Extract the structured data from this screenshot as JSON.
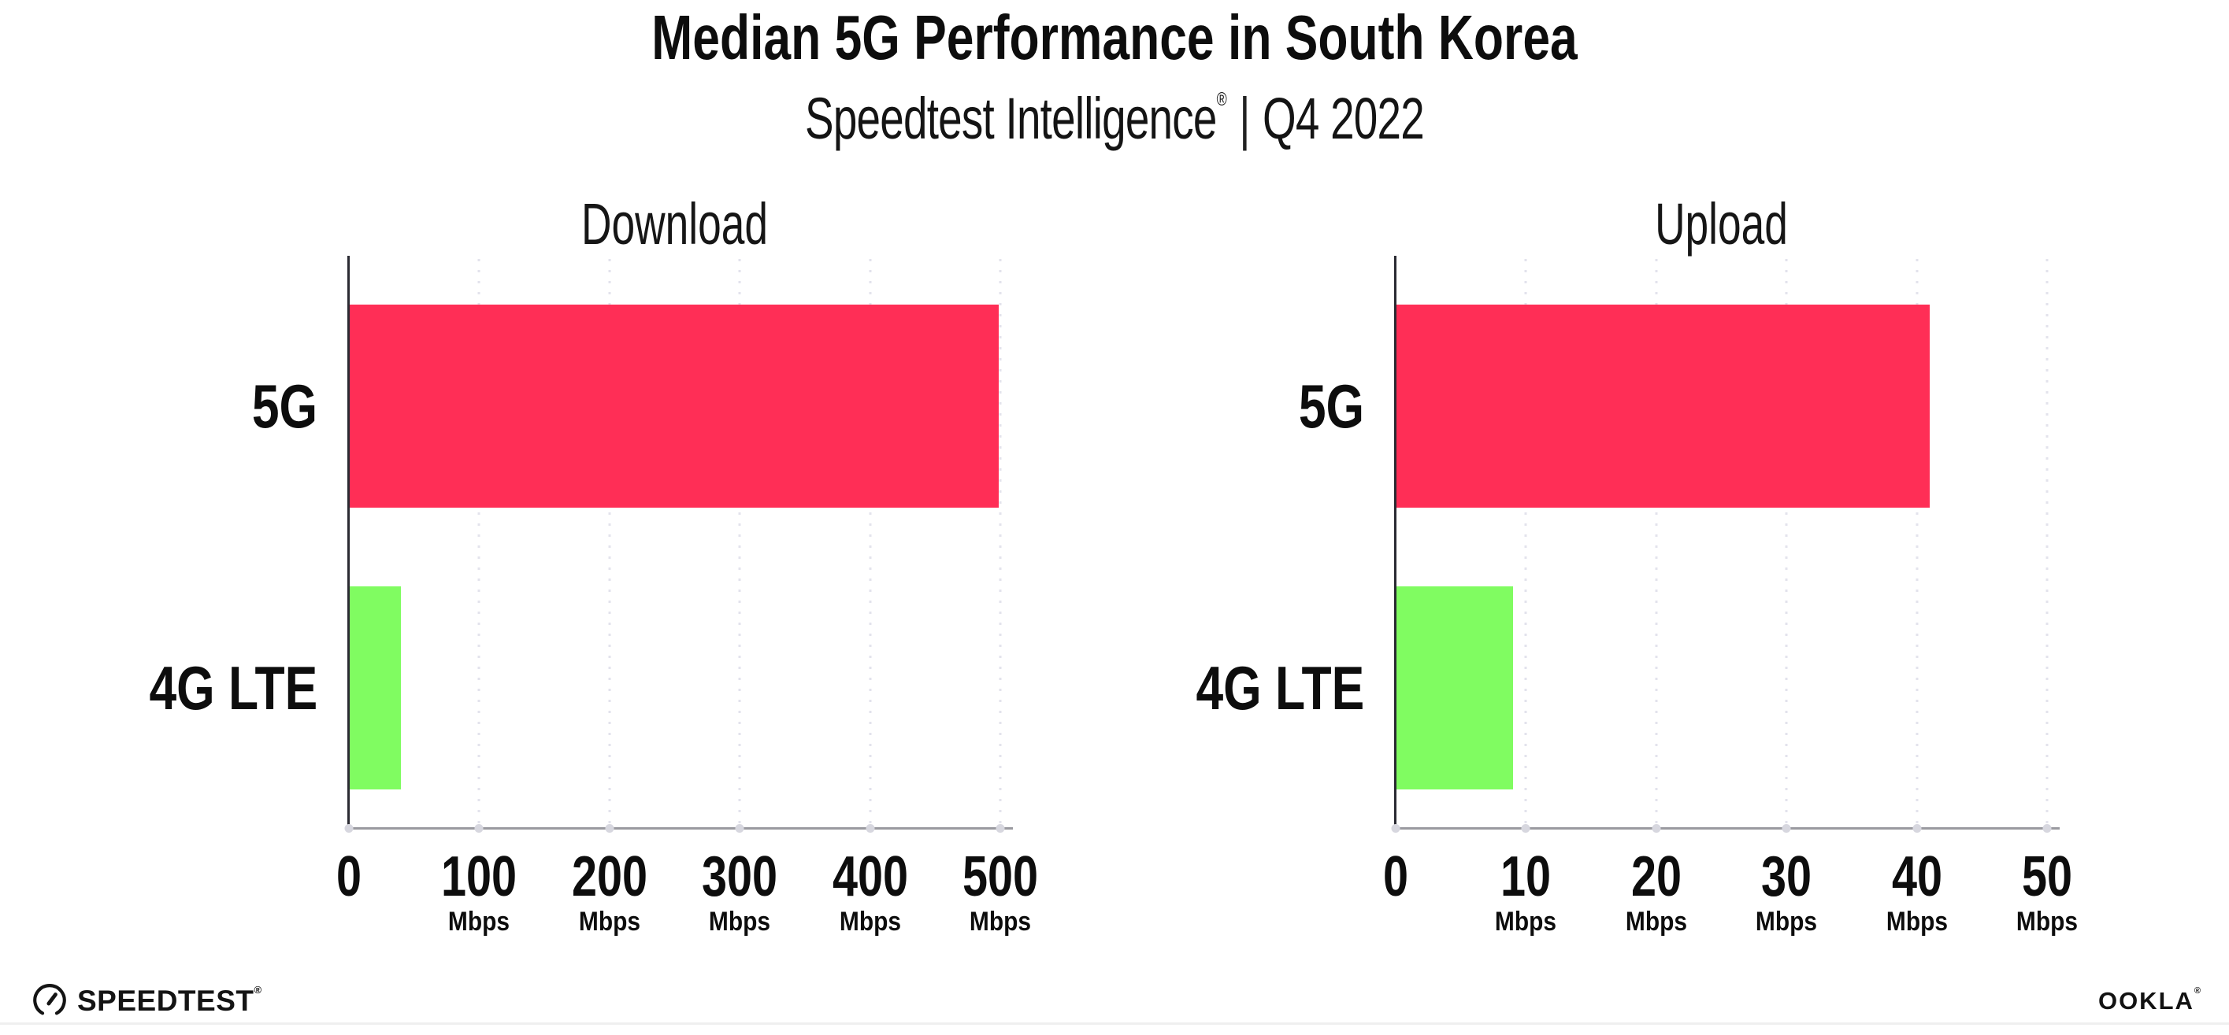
{
  "header": {
    "title": "Median 5G Performance in South Korea",
    "subtitle_brand": "Speedtest Intelligence",
    "subtitle_reg": "®",
    "subtitle_separator": "|",
    "subtitle_period": "Q4 2022"
  },
  "colors": {
    "bar_5g": "#ff2e56",
    "bar_4g": "#80fc61",
    "gridline": "#e3e3ec",
    "baseline": "#9a9aa0",
    "y_axis": "#2a2a32",
    "text": "#0d0d0d"
  },
  "chart_data": [
    {
      "type": "bar",
      "orientation": "horizontal",
      "title": "Download",
      "categories": [
        "5G",
        "4G LTE"
      ],
      "values": [
        499,
        40
      ],
      "unit": "Mbps",
      "xlim": [
        0,
        500
      ],
      "ticks": [
        0,
        100,
        200,
        300,
        400,
        500
      ],
      "tick_unit_label": "Mbps",
      "grid": "dotted-vertical",
      "bar_colors": [
        "#ff2e56",
        "#80fc61"
      ]
    },
    {
      "type": "bar",
      "orientation": "horizontal",
      "title": "Upload",
      "categories": [
        "5G",
        "4G LTE"
      ],
      "values": [
        41,
        9
      ],
      "unit": "Mbps",
      "xlim": [
        0,
        50
      ],
      "ticks": [
        0,
        10,
        20,
        30,
        40,
        50
      ],
      "tick_unit_label": "Mbps",
      "grid": "dotted-vertical",
      "bar_colors": [
        "#ff2e56",
        "#80fc61"
      ]
    }
  ],
  "footer": {
    "speedtest_wordmark": "SPEEDTEST",
    "speedtest_reg": "®",
    "ookla_wordmark": "OOKLA",
    "ookla_reg": "®"
  }
}
